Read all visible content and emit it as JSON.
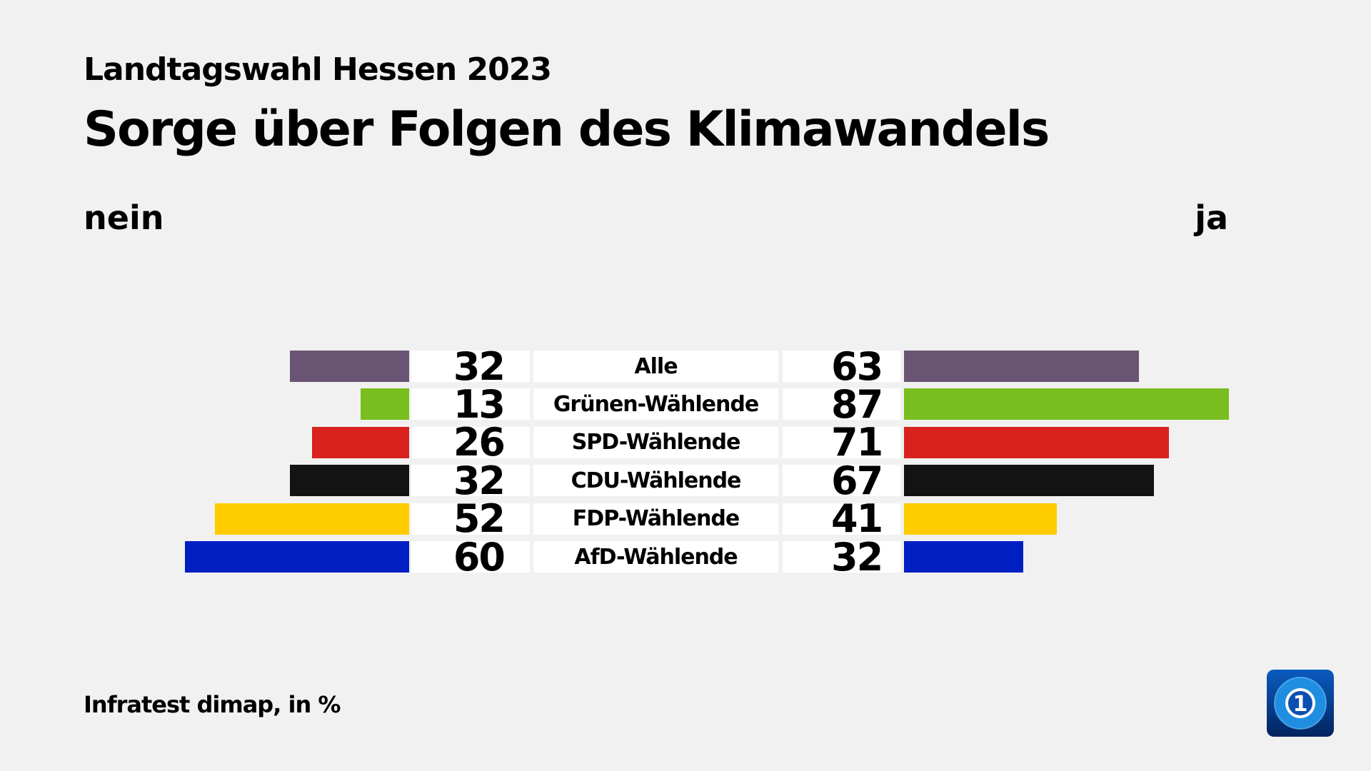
{
  "header": {
    "subtitle": "Landtagswahl Hessen 2023",
    "title": "Sorge über Folgen des Klimawandels"
  },
  "legend": {
    "left": "nein",
    "right": "ja"
  },
  "footer": {
    "source": "Infratest dimap, in %"
  },
  "logo": {
    "name": "tagesschau-logo",
    "text": "1"
  },
  "chart_data": {
    "type": "bar",
    "orientation": "horizontal-diverging",
    "title": "Sorge über Folgen des Klimawandels",
    "subtitle": "Landtagswahl Hessen 2023",
    "unit": "%",
    "categories": [
      "Alle",
      "Grünen-Wählende",
      "SPD-Wählende",
      "CDU-Wählende",
      "FDP-Wählende",
      "AfD-Wählende"
    ],
    "series": [
      {
        "name": "nein",
        "values": [
          32,
          13,
          26,
          32,
          52,
          60
        ]
      },
      {
        "name": "ja",
        "values": [
          63,
          87,
          71,
          67,
          41,
          32
        ]
      }
    ],
    "colors": [
      "#6a5473",
      "#78be1e",
      "#d8221d",
      "#131313",
      "#ffcc00",
      "#001fc3"
    ]
  }
}
